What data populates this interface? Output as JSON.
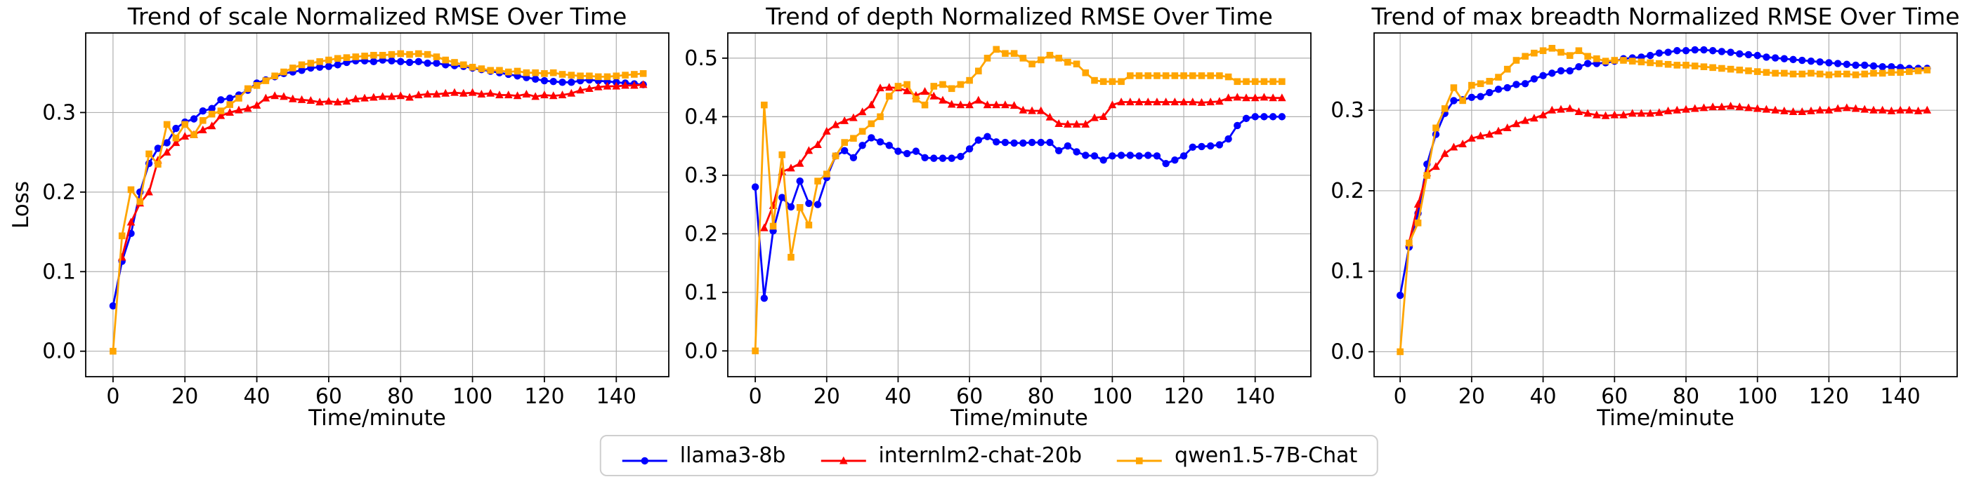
{
  "figure": {
    "background": "#ffffff",
    "grid_color": "#b0b0b0",
    "spine_color": "#000000"
  },
  "legend": {
    "position": "bottom-center",
    "entries": [
      {
        "label": "llama3-8b",
        "color": "#0000ff",
        "marker": "circle"
      },
      {
        "label": "internlm2-chat-20b",
        "color": "#ff0000",
        "marker": "triangle"
      },
      {
        "label": "qwen1.5-7B-Chat",
        "color": "#ffa500",
        "marker": "square"
      }
    ]
  },
  "chart_data": [
    {
      "type": "line",
      "id": "scale",
      "title": "Trend of scale Normalized RMSE Over Time",
      "xlabel": "Time/minute",
      "ylabel": "Loss",
      "grid": true,
      "xlim": [
        -7.6,
        154.6
      ],
      "ylim": [
        -0.032,
        0.4
      ],
      "xticks": [
        0,
        20,
        40,
        60,
        80,
        100,
        120,
        140
      ],
      "yticks": [
        0.0,
        0.1,
        0.2,
        0.3
      ],
      "series": [
        {
          "name": "llama3-8b",
          "color": "#0000ff",
          "marker": "circle",
          "x0": 0,
          "dx": 2.5,
          "y": [
            0.057,
            0.113,
            0.148,
            0.2,
            0.236,
            0.255,
            0.262,
            0.28,
            0.288,
            0.292,
            0.302,
            0.305,
            0.316,
            0.318,
            0.322,
            0.328,
            0.337,
            0.341,
            0.345,
            0.349,
            0.351,
            0.353,
            0.356,
            0.357,
            0.358,
            0.36,
            0.363,
            0.365,
            0.365,
            0.364,
            0.366,
            0.365,
            0.364,
            0.363,
            0.364,
            0.362,
            0.362,
            0.36,
            0.359,
            0.358,
            0.356,
            0.354,
            0.352,
            0.35,
            0.348,
            0.346,
            0.344,
            0.342,
            0.34,
            0.339,
            0.338,
            0.338,
            0.34,
            0.341,
            0.34,
            0.339,
            0.338,
            0.337,
            0.336,
            0.335
          ]
        },
        {
          "name": "internlm2-chat-20b",
          "color": "#ff0000",
          "marker": "triangle",
          "x0": 2.5,
          "dx": 2.5,
          "y": [
            0.118,
            0.162,
            0.186,
            0.2,
            0.24,
            0.25,
            0.262,
            0.27,
            0.272,
            0.278,
            0.283,
            0.296,
            0.3,
            0.303,
            0.305,
            0.309,
            0.318,
            0.321,
            0.32,
            0.317,
            0.316,
            0.315,
            0.313,
            0.314,
            0.313,
            0.314,
            0.317,
            0.318,
            0.319,
            0.32,
            0.32,
            0.321,
            0.319,
            0.322,
            0.323,
            0.323,
            0.324,
            0.325,
            0.324,
            0.325,
            0.323,
            0.324,
            0.322,
            0.322,
            0.321,
            0.323,
            0.32,
            0.322,
            0.321,
            0.322,
            0.324,
            0.328,
            0.33,
            0.332,
            0.333,
            0.333,
            0.334,
            0.334,
            0.335
          ]
        },
        {
          "name": "qwen1.5-7B-Chat",
          "color": "#ffa500",
          "marker": "square",
          "x0": 0,
          "dx": 2.5,
          "y": [
            0.0,
            0.145,
            0.203,
            0.188,
            0.248,
            0.235,
            0.285,
            0.268,
            0.285,
            0.272,
            0.29,
            0.298,
            0.302,
            0.31,
            0.318,
            0.33,
            0.334,
            0.34,
            0.346,
            0.351,
            0.356,
            0.36,
            0.362,
            0.364,
            0.366,
            0.368,
            0.369,
            0.37,
            0.371,
            0.372,
            0.372,
            0.373,
            0.374,
            0.373,
            0.374,
            0.373,
            0.37,
            0.366,
            0.363,
            0.36,
            0.357,
            0.355,
            0.353,
            0.353,
            0.351,
            0.352,
            0.35,
            0.35,
            0.349,
            0.35,
            0.348,
            0.347,
            0.346,
            0.346,
            0.345,
            0.345,
            0.346,
            0.347,
            0.348,
            0.349
          ]
        }
      ]
    },
    {
      "type": "line",
      "id": "depth",
      "title": "Trend of depth Normalized RMSE Over Time",
      "xlabel": "Time/minute",
      "ylabel": "",
      "grid": true,
      "xlim": [
        -7.7,
        155.6
      ],
      "ylim": [
        -0.044,
        0.543
      ],
      "xticks": [
        0,
        20,
        40,
        60,
        80,
        100,
        120,
        140
      ],
      "yticks": [
        0.0,
        0.1,
        0.2,
        0.3,
        0.4,
        0.5
      ],
      "series": [
        {
          "name": "llama3-8b",
          "color": "#0000ff",
          "marker": "circle",
          "x0": 0,
          "dx": 2.5,
          "y": [
            0.28,
            0.09,
            0.205,
            0.262,
            0.246,
            0.29,
            0.252,
            0.25,
            0.296,
            0.333,
            0.342,
            0.33,
            0.351,
            0.364,
            0.357,
            0.351,
            0.341,
            0.337,
            0.341,
            0.33,
            0.329,
            0.329,
            0.329,
            0.332,
            0.345,
            0.36,
            0.366,
            0.357,
            0.356,
            0.355,
            0.355,
            0.356,
            0.356,
            0.356,
            0.342,
            0.35,
            0.34,
            0.334,
            0.333,
            0.326,
            0.333,
            0.334,
            0.334,
            0.333,
            0.334,
            0.333,
            0.32,
            0.326,
            0.333,
            0.348,
            0.349,
            0.35,
            0.352,
            0.362,
            0.385,
            0.397,
            0.4,
            0.4,
            0.4,
            0.4
          ]
        },
        {
          "name": "internlm2-chat-20b",
          "color": "#ff0000",
          "marker": "triangle",
          "x0": 2.5,
          "dx": 2.5,
          "y": [
            0.21,
            0.248,
            0.306,
            0.312,
            0.32,
            0.342,
            0.352,
            0.375,
            0.386,
            0.393,
            0.398,
            0.408,
            0.42,
            0.449,
            0.45,
            0.449,
            0.444,
            0.436,
            0.443,
            0.435,
            0.428,
            0.421,
            0.42,
            0.42,
            0.428,
            0.42,
            0.42,
            0.42,
            0.419,
            0.411,
            0.41,
            0.41,
            0.399,
            0.388,
            0.387,
            0.387,
            0.387,
            0.398,
            0.4,
            0.42,
            0.425,
            0.425,
            0.425,
            0.425,
            0.425,
            0.425,
            0.425,
            0.425,
            0.425,
            0.424,
            0.425,
            0.426,
            0.432,
            0.433,
            0.432,
            0.432,
            0.433,
            0.432,
            0.432
          ]
        },
        {
          "name": "qwen1.5-7B-Chat",
          "color": "#ffa500",
          "marker": "square",
          "x0": 0,
          "dx": 2.5,
          "y": [
            0.0,
            0.42,
            0.213,
            0.335,
            0.16,
            0.245,
            0.215,
            0.29,
            0.302,
            0.333,
            0.356,
            0.363,
            0.375,
            0.388,
            0.4,
            0.435,
            0.452,
            0.455,
            0.43,
            0.42,
            0.452,
            0.455,
            0.448,
            0.455,
            0.462,
            0.478,
            0.5,
            0.515,
            0.508,
            0.508,
            0.5,
            0.49,
            0.497,
            0.505,
            0.5,
            0.493,
            0.49,
            0.475,
            0.462,
            0.46,
            0.46,
            0.46,
            0.47,
            0.47,
            0.47,
            0.47,
            0.47,
            0.47,
            0.47,
            0.47,
            0.47,
            0.47,
            0.47,
            0.468,
            0.46,
            0.46,
            0.46,
            0.46,
            0.46,
            0.46
          ]
        }
      ]
    },
    {
      "type": "line",
      "id": "max-breadth",
      "title": "Trend of max breadth Normalized RMSE Over Time",
      "xlabel": "Time/minute",
      "ylabel": "",
      "grid": true,
      "xlim": [
        -7.3,
        155.9
      ],
      "ylim": [
        -0.031,
        0.396
      ],
      "xticks": [
        0,
        20,
        40,
        60,
        80,
        100,
        120,
        140
      ],
      "yticks": [
        0.0,
        0.1,
        0.2,
        0.3
      ],
      "series": [
        {
          "name": "llama3-8b",
          "color": "#0000ff",
          "marker": "circle",
          "x0": 0,
          "dx": 2.5,
          "y": [
            0.07,
            0.13,
            0.172,
            0.233,
            0.27,
            0.296,
            0.312,
            0.313,
            0.316,
            0.317,
            0.322,
            0.326,
            0.328,
            0.332,
            0.333,
            0.339,
            0.343,
            0.346,
            0.349,
            0.349,
            0.354,
            0.358,
            0.358,
            0.359,
            0.361,
            0.364,
            0.365,
            0.366,
            0.368,
            0.371,
            0.372,
            0.374,
            0.374,
            0.375,
            0.375,
            0.374,
            0.373,
            0.372,
            0.37,
            0.369,
            0.368,
            0.366,
            0.365,
            0.364,
            0.363,
            0.362,
            0.361,
            0.36,
            0.359,
            0.358,
            0.357,
            0.356,
            0.356,
            0.355,
            0.354,
            0.354,
            0.353,
            0.352,
            0.352,
            0.352
          ]
        },
        {
          "name": "internlm2-chat-20b",
          "color": "#ff0000",
          "marker": "triangle",
          "x0": 2.5,
          "dx": 2.5,
          "y": [
            0.135,
            0.183,
            0.222,
            0.23,
            0.246,
            0.254,
            0.258,
            0.265,
            0.268,
            0.27,
            0.274,
            0.278,
            0.283,
            0.287,
            0.29,
            0.294,
            0.3,
            0.301,
            0.302,
            0.298,
            0.296,
            0.294,
            0.293,
            0.294,
            0.294,
            0.296,
            0.296,
            0.296,
            0.297,
            0.299,
            0.3,
            0.301,
            0.302,
            0.303,
            0.304,
            0.304,
            0.305,
            0.304,
            0.303,
            0.302,
            0.301,
            0.3,
            0.299,
            0.298,
            0.298,
            0.299,
            0.3,
            0.3,
            0.302,
            0.303,
            0.302,
            0.301,
            0.3,
            0.3,
            0.299,
            0.3,
            0.3,
            0.299,
            0.3
          ]
        },
        {
          "name": "qwen1.5-7B-Chat",
          "color": "#ffa500",
          "marker": "square",
          "x0": 0,
          "dx": 2.5,
          "y": [
            0.0,
            0.135,
            0.16,
            0.219,
            0.278,
            0.302,
            0.328,
            0.312,
            0.331,
            0.333,
            0.336,
            0.341,
            0.351,
            0.362,
            0.367,
            0.371,
            0.374,
            0.377,
            0.372,
            0.368,
            0.374,
            0.367,
            0.364,
            0.361,
            0.362,
            0.362,
            0.361,
            0.36,
            0.359,
            0.358,
            0.357,
            0.356,
            0.356,
            0.355,
            0.354,
            0.353,
            0.352,
            0.351,
            0.35,
            0.349,
            0.348,
            0.347,
            0.346,
            0.346,
            0.345,
            0.345,
            0.346,
            0.345,
            0.344,
            0.345,
            0.345,
            0.344,
            0.345,
            0.346,
            0.346,
            0.347,
            0.347,
            0.348,
            0.349,
            0.35
          ]
        }
      ]
    }
  ]
}
